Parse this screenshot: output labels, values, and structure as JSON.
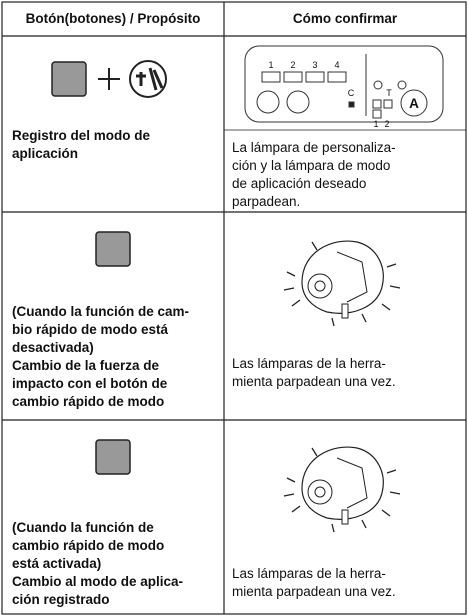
{
  "table": {
    "header": [
      "Botón(botones) / Propósito",
      "Cómo confirmar"
    ],
    "rows": [
      {
        "purpose": [
          "Registro del modo de",
          "aplicación"
        ],
        "confirm": [
          "La lámpara de personaliza-",
          "ción y la lámpara de modo",
          "de aplicación deseado",
          "parpadean."
        ]
      },
      {
        "purpose": [
          "(Cuando la función de cam-",
          "bio rápido de modo está",
          "desactivada)",
          "Cambio de la fuerza de",
          "impacto con el botón de",
          "cambio rápido de modo"
        ],
        "confirm": [
          "Las lámparas de la herra-",
          "mienta parpadean una vez."
        ]
      },
      {
        "purpose": [
          "(Cuando la función de",
          "cambio rápido de modo",
          "está activada)",
          "Cambio al modo de aplica-",
          "ción registrado"
        ],
        "confirm": [
          "Las lámparas de la herra-",
          "mienta parpadean una vez."
        ]
      }
    ]
  },
  "panel": {
    "labels": [
      "1",
      "2",
      "3",
      "4",
      "C",
      "T",
      "1",
      "2",
      "A"
    ]
  }
}
